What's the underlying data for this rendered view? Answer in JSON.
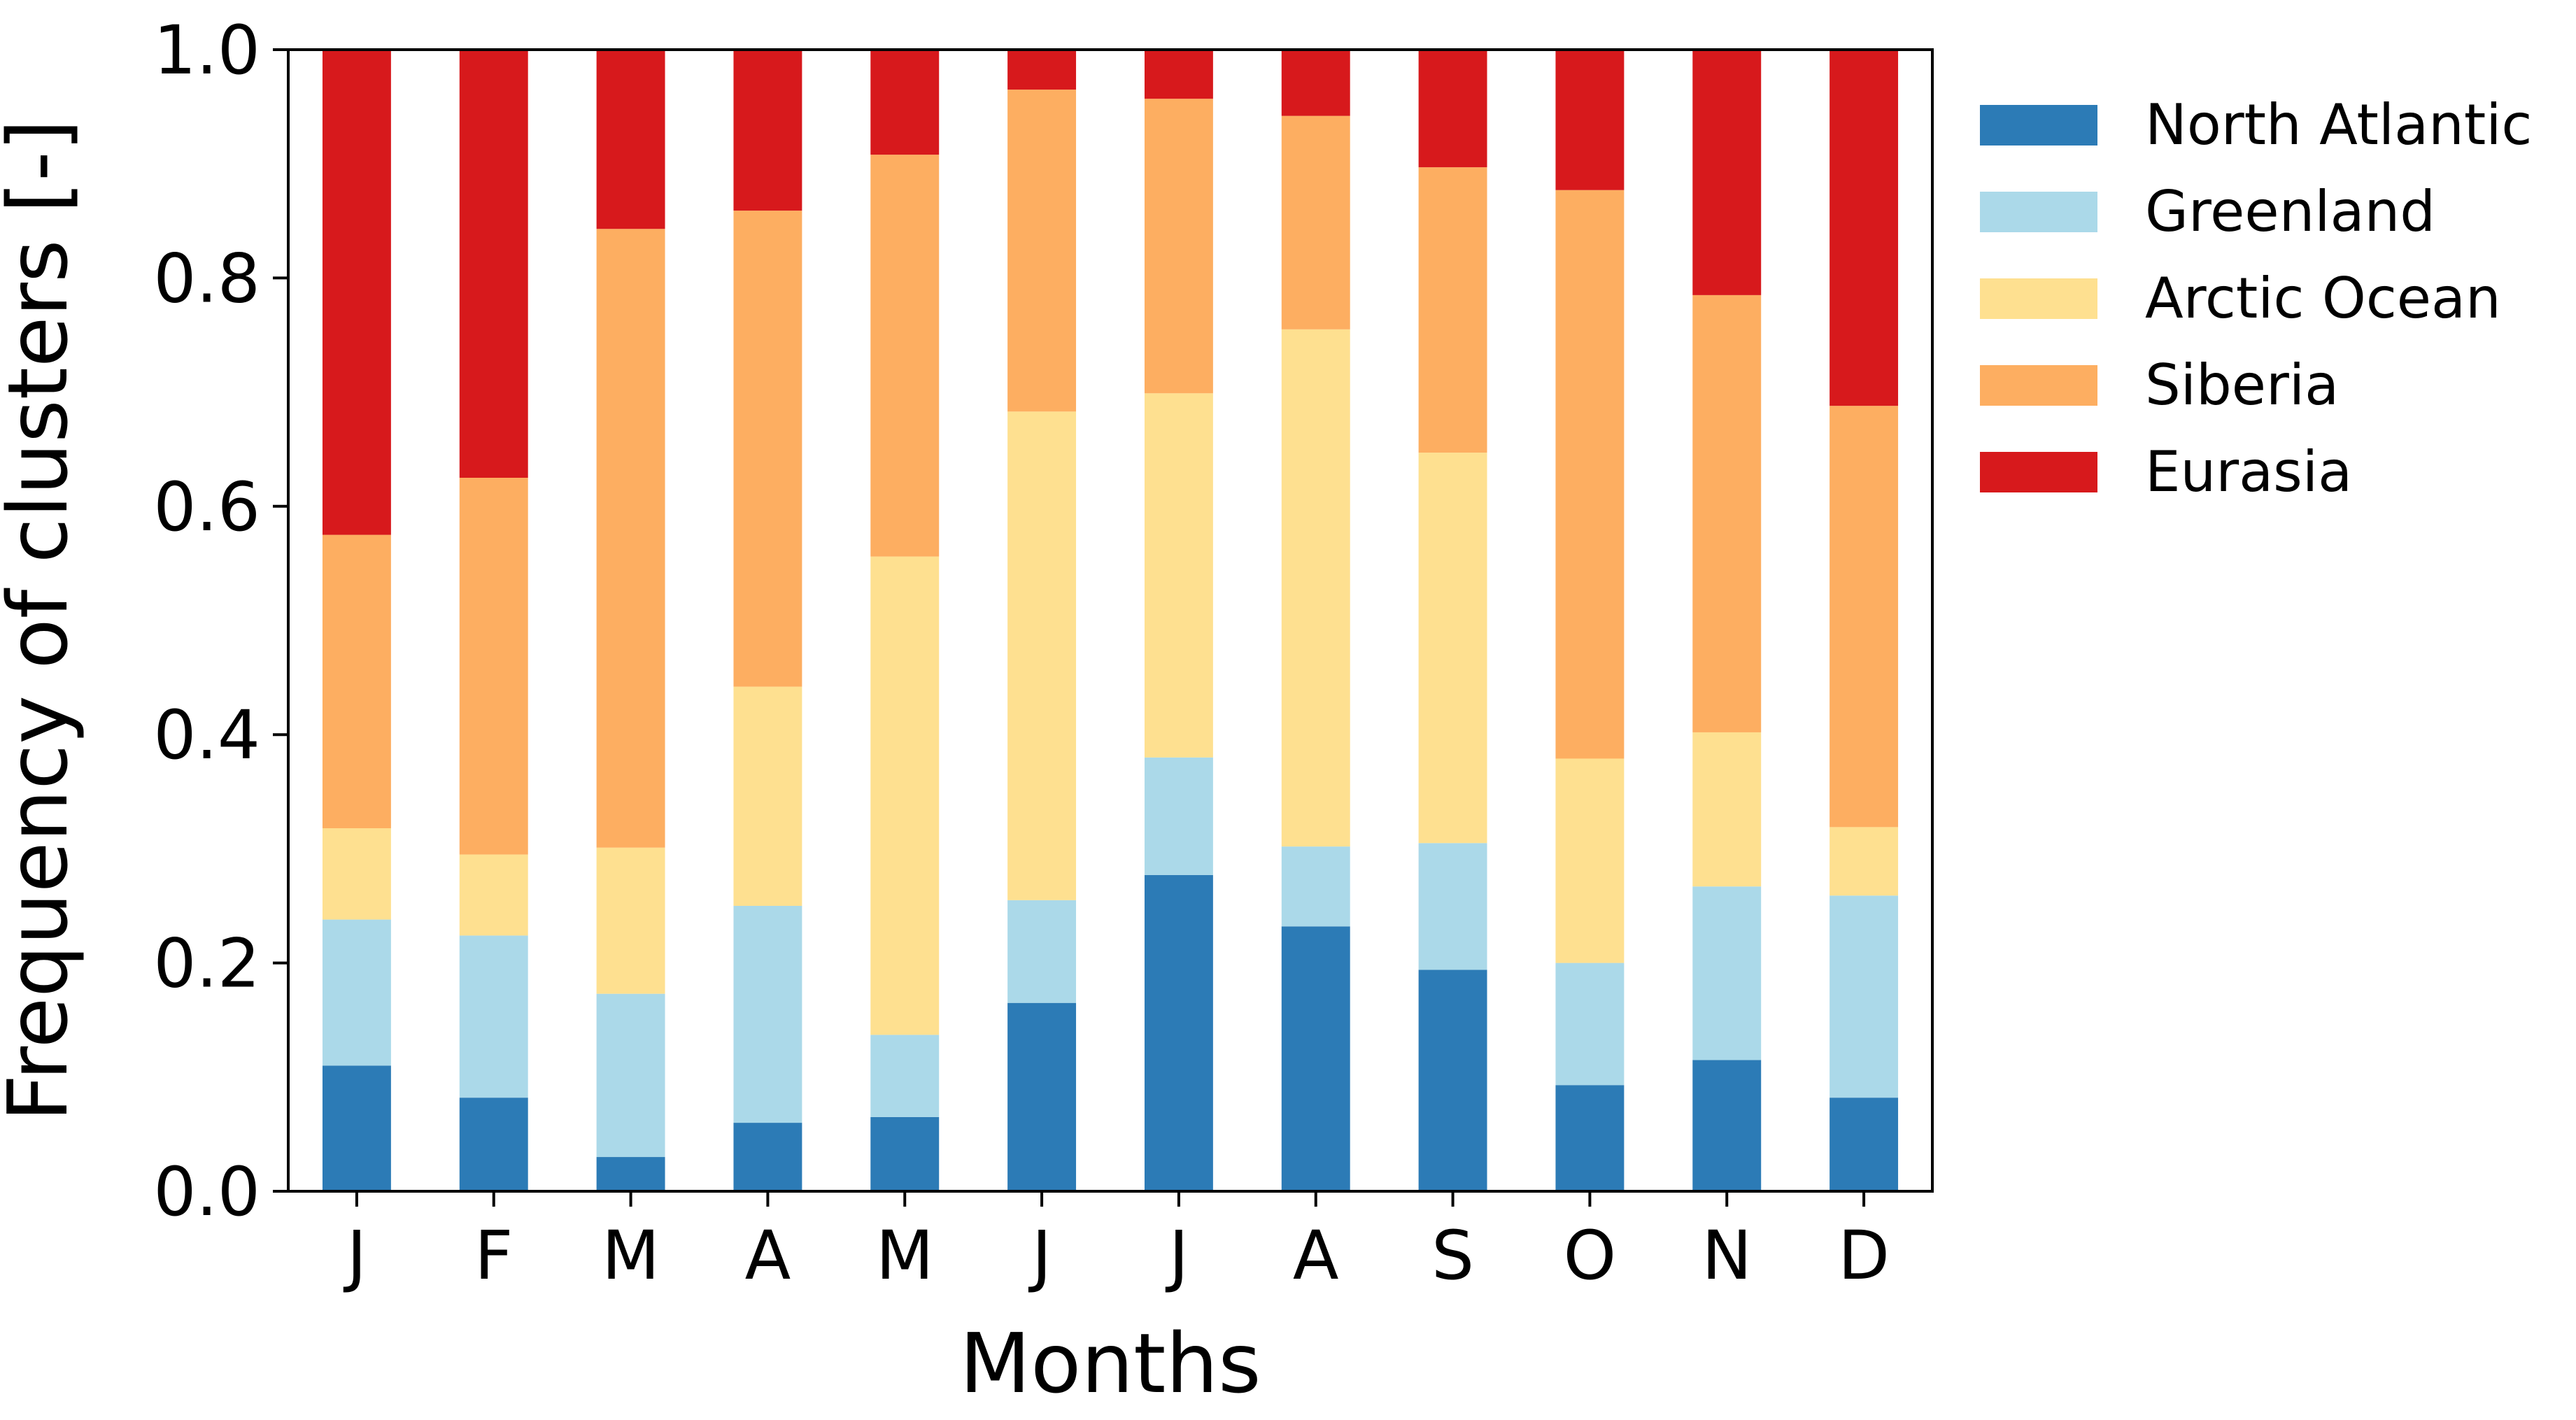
{
  "chart_data": {
    "type": "bar",
    "stacked": true,
    "categories": [
      "J",
      "F",
      "M",
      "A",
      "M",
      "J",
      "J",
      "A",
      "S",
      "O",
      "N",
      "D"
    ],
    "xlabel": "Months",
    "ylabel": "Frequency of clusters [-]",
    "ylim": [
      0,
      1.0
    ],
    "yticks": [
      "0.0",
      "0.2",
      "0.4",
      "0.6",
      "0.8",
      "1.0"
    ],
    "grid": false,
    "legend_position": "outside right, top",
    "series": [
      {
        "name": "North Atlantic",
        "color": "#2c7bb6",
        "values": [
          0.11,
          0.082,
          0.03,
          0.06,
          0.065,
          0.165,
          0.277,
          0.232,
          0.194,
          0.093,
          0.115,
          0.082
        ]
      },
      {
        "name": "Greenland",
        "color": "#abd9e9",
        "values": [
          0.128,
          0.142,
          0.143,
          0.19,
          0.072,
          0.09,
          0.103,
          0.07,
          0.111,
          0.107,
          0.152,
          0.177
        ]
      },
      {
        "name": "Arctic Ocean",
        "color": "#fee090",
        "values": [
          0.08,
          0.071,
          0.128,
          0.192,
          0.419,
          0.428,
          0.319,
          0.453,
          0.342,
          0.179,
          0.135,
          0.06
        ]
      },
      {
        "name": "Siberia",
        "color": "#fdae61",
        "values": [
          0.257,
          0.33,
          0.542,
          0.417,
          0.352,
          0.282,
          0.258,
          0.187,
          0.25,
          0.498,
          0.383,
          0.369
        ]
      },
      {
        "name": "Eurasia",
        "color": "#d7191c",
        "values": [
          0.425,
          0.375,
          0.157,
          0.141,
          0.092,
          0.035,
          0.043,
          0.058,
          0.103,
          0.123,
          0.215,
          0.312
        ]
      }
    ]
  }
}
